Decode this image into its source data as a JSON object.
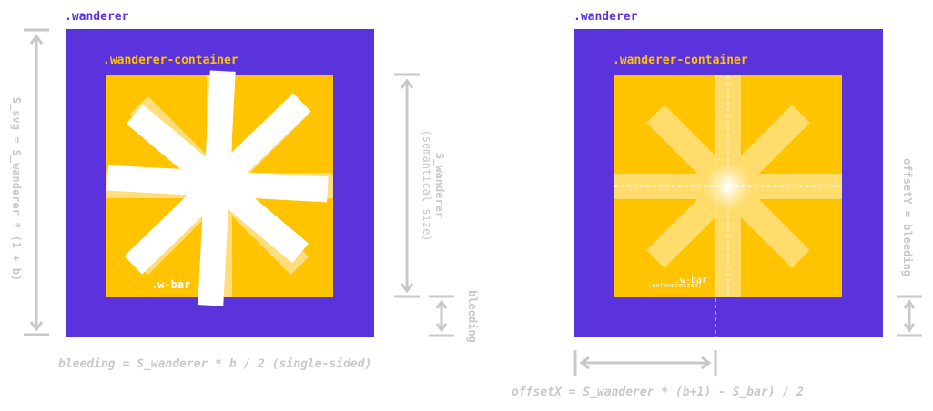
{
  "left": {
    "wanderer_label": ".wanderer",
    "container_label": ".wanderer-container",
    "bar_label": ".w-bar",
    "s_svg_formula": "S_svg = S_wanderer * (1 + b)",
    "s_wanderer_line1": "S_wanderer",
    "s_wanderer_line2": "(semantical size)",
    "bleeding_label": "bleeding",
    "bleeding_formula": "bleeding = S_wanderer * b / 2 (single-sided)"
  },
  "right": {
    "wanderer_label": ".wanderer",
    "container_label": ".wanderer-container",
    "bar_label": ".w-bar",
    "bar_sublabel": "(unrandomized)",
    "offsety_formula": "offsetY = bleeding",
    "offsetx_formula": "offsetX = S_wanderer * (b+1) - S_bar) / 2"
  },
  "colors": {
    "purple": "#5b33dd",
    "yellow": "#ffc300",
    "gray": "#c8c8c8",
    "white": "#ffffff"
  }
}
